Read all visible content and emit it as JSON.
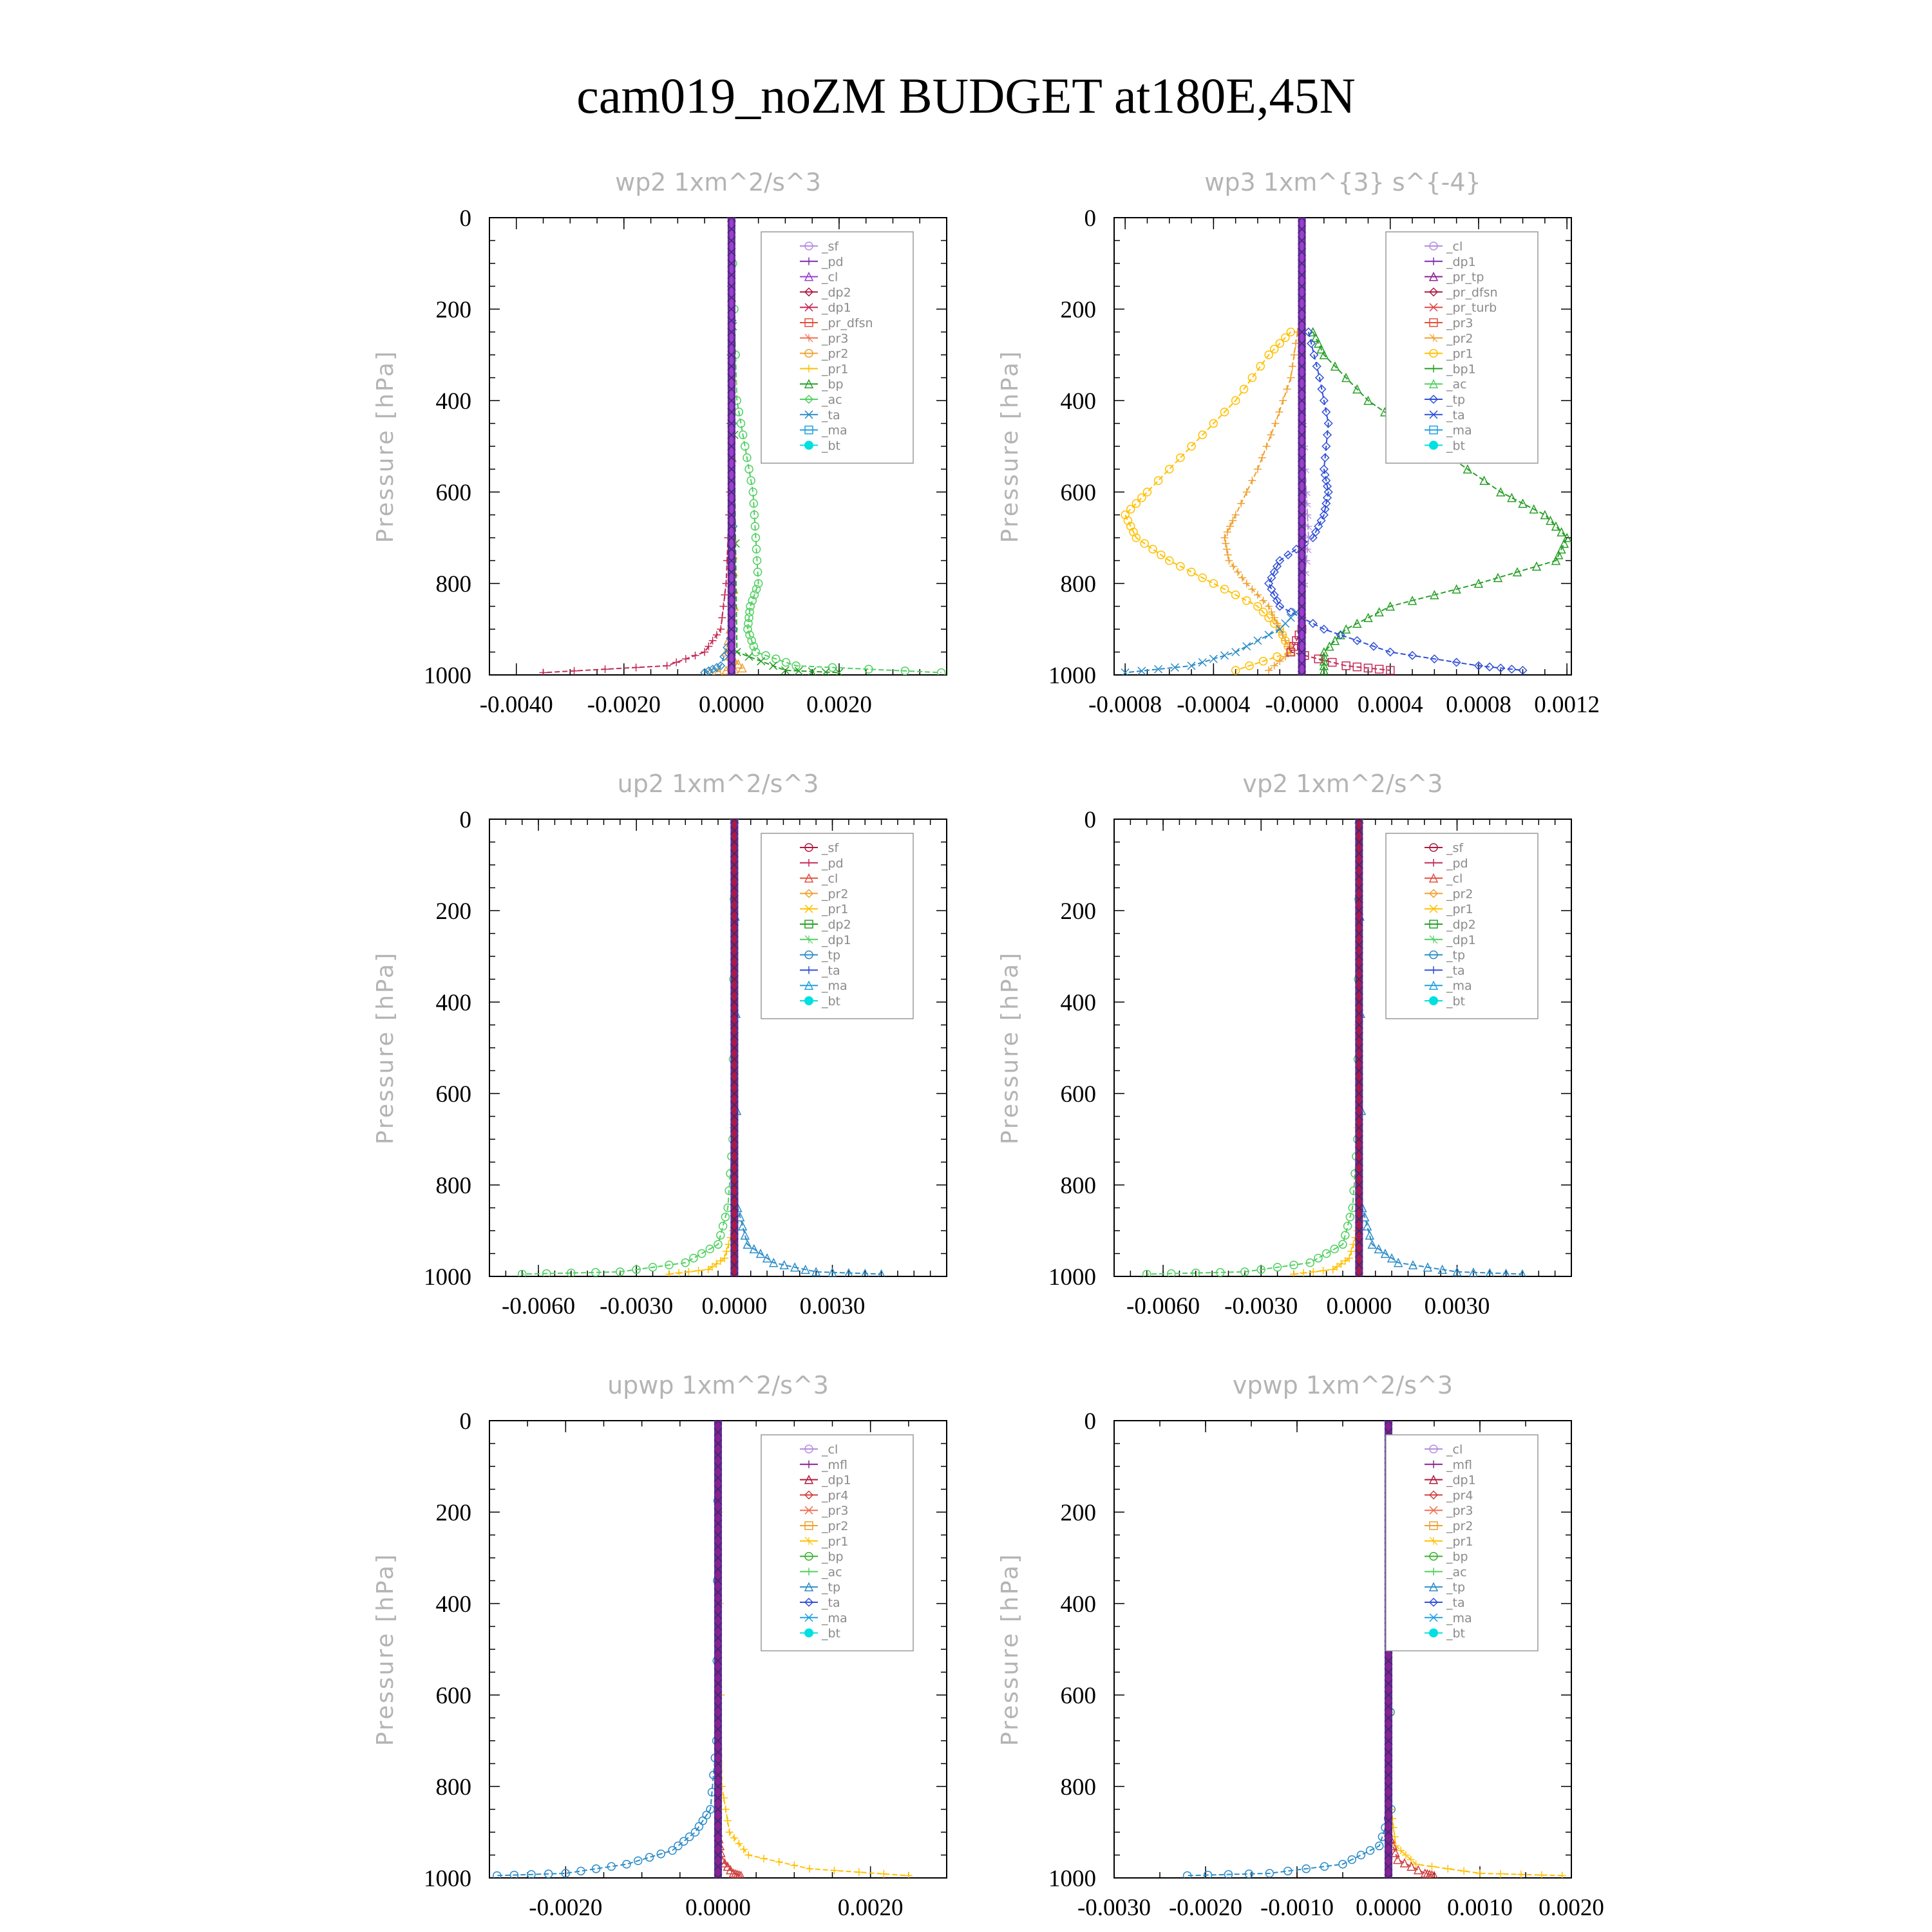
{
  "figure": {
    "title": "cam019_noZM  BUDGET at180E,45N"
  },
  "colors": {
    "sf": "#b48de0",
    "pd": "#7a2fb5",
    "cl": "#9b3fd0",
    "mfl": "#8a2090",
    "dp2": "#b01840",
    "dp1": "#c42a55",
    "dp1b": "#3cc850",
    "pr_dfsn": "#e0503c",
    "pr_tp": "#8a2090",
    "pr_turb": "#e04848",
    "pr4": "#d04040",
    "pr3": "#f07050",
    "pr2": "#f0a030",
    "pr1": "#ffc000",
    "bp": "#3db030",
    "bp1": "#28a028",
    "ac": "#50d060",
    "tp": "#2c8cc8",
    "ta": "#3050d8",
    "ma": "#20a0e0",
    "bt": "#00e0e0"
  },
  "chart_data": [
    {
      "type": "line",
      "title": "wp2   1xm^2/s^3",
      "ylabel": "Pressure [hPa]",
      "xlim": [
        -0.0045,
        0.004
      ],
      "ylim": [
        1000,
        0
      ],
      "xticks": [
        -0.004,
        -0.002,
        0.0,
        0.002
      ],
      "xtick_labels": [
        "-0.0040",
        "-0.0020",
        "0.0000",
        "0.0020"
      ],
      "yticks": [
        0,
        200,
        400,
        600,
        800,
        1000
      ],
      "ytick_labels": [
        "0",
        "200",
        "400",
        "600",
        "800",
        "1000"
      ],
      "x_minor": 0.0005,
      "legend": [
        "_sf",
        "_pd",
        "_cl",
        "_dp2",
        "_dp1",
        "_pr_dfsn",
        "_pr3",
        "_pr2",
        "_pr1",
        "_bp",
        "_ac",
        "_ta",
        "_ma",
        "_bt"
      ],
      "legend_colors": [
        "sf",
        "pd",
        "cl",
        "dp2",
        "dp1",
        "pr_dfsn",
        "pr3",
        "pr2",
        "pr1",
        "bp1",
        "ac",
        "tp",
        "ma",
        "bt"
      ],
      "series": [
        {
          "color": "ac",
          "y": [
            0,
            400,
            500,
            600,
            700,
            800,
            850,
            900,
            950,
            980,
            995
          ],
          "x": [
            0,
            0.0001,
            0.00025,
            0.0004,
            0.00045,
            0.0005,
            0.00035,
            0.0003,
            0.00045,
            0.0012,
            0.0039
          ]
        },
        {
          "color": "dp1",
          "y": [
            0,
            600,
            800,
            900,
            950,
            980,
            995
          ],
          "x": [
            0,
            -3e-05,
            -0.0001,
            -0.0002,
            -0.0005,
            -0.0012,
            -0.0035
          ]
        },
        {
          "color": "pr2",
          "y": [
            0,
            700,
            850,
            950,
            985,
            995
          ],
          "x": [
            0,
            2e-05,
            5e-05,
            -0.0001,
            0.0002,
            -0.0004
          ]
        },
        {
          "color": "tp",
          "y": [
            0,
            900,
            980,
            995
          ],
          "x": [
            0,
            4e-05,
            -0.0002,
            -0.0005
          ]
        },
        {
          "color": "bp1",
          "y": [
            0,
            950,
            990,
            995
          ],
          "x": [
            0,
            0.0001,
            0.001,
            0.002
          ]
        },
        {
          "color": "cl",
          "y": [
            0,
            1000
          ],
          "x": [
            0,
            0
          ],
          "thick": true
        }
      ]
    },
    {
      "type": "line",
      "title": "wp3   1xm^{3} s^{-4}",
      "ylabel": "Pressure [hPa]",
      "xlim": [
        -0.00085,
        0.00122
      ],
      "ylim": [
        1000,
        0
      ],
      "xticks": [
        -0.0008,
        -0.0004,
        0.0,
        0.0004,
        0.0008,
        0.0012
      ],
      "xtick_labels": [
        "-0.0008",
        "-0.0004",
        "-0.0000",
        "0.0004",
        "0.0008",
        "0.0012"
      ],
      "yticks": [
        0,
        200,
        400,
        600,
        800,
        1000
      ],
      "ytick_labels": [
        "0",
        "200",
        "400",
        "600",
        "800",
        "1000"
      ],
      "x_minor": 0.0001,
      "legend": [
        "_cl",
        "_dp1",
        "_pr_tp",
        "_pr_dfsn",
        "_pr_turb",
        "_pr3",
        "_pr2",
        "_pr1",
        "_bp1",
        "_ac",
        "_tp",
        "_ta",
        "_ma",
        "_bt"
      ],
      "legend_colors": [
        "sf",
        "pd",
        "pr_tp",
        "dp2",
        "pr_turb",
        "pr_dfsn",
        "pr2",
        "pr1",
        "bp1",
        "ac",
        "ta",
        "ta",
        "ma",
        "bt"
      ],
      "series": [
        {
          "color": "pr1",
          "y": [
            250,
            300,
            400,
            500,
            600,
            650,
            700,
            750,
            800,
            850,
            900,
            950,
            990
          ],
          "x": [
            -5e-05,
            -0.00015,
            -0.0003,
            -0.0005,
            -0.0007,
            -0.0008,
            -0.00075,
            -0.0006,
            -0.0004,
            -0.0002,
            -0.0001,
            -5e-05,
            -0.0003
          ]
        },
        {
          "color": "pr2",
          "y": [
            250,
            350,
            450,
            550,
            650,
            700,
            750,
            800,
            850,
            900,
            950,
            990
          ],
          "x": [
            -2e-05,
            -5e-05,
            -0.00012,
            -0.0002,
            -0.0003,
            -0.00035,
            -0.00033,
            -0.00025,
            -0.00015,
            -0.0001,
            -5e-05,
            -0.00015
          ]
        },
        {
          "color": "bp1",
          "y": [
            250,
            300,
            400,
            500,
            600,
            650,
            700,
            750,
            800,
            850,
            900,
            950,
            990
          ],
          "x": [
            5e-05,
            0.0001,
            0.0003,
            0.0006,
            0.0009,
            0.0011,
            0.0012,
            0.00115,
            0.0008,
            0.0004,
            0.0002,
            0.0001,
            0.0001
          ]
        },
        {
          "color": "ta",
          "y": [
            250,
            350,
            450,
            550,
            600,
            650,
            700,
            750,
            800,
            850,
            900,
            950,
            980,
            990
          ],
          "x": [
            3e-05,
            8e-05,
            0.00012,
            0.0001,
            0.00012,
            0.0001,
            5e-05,
            -0.0001,
            -0.00015,
            -0.0001,
            0.0001,
            0.0004,
            0.0008,
            0.001
          ]
        },
        {
          "color": "tp",
          "y": [
            850,
            900,
            950,
            980,
            995
          ],
          "x": [
            0,
            -0.0001,
            -0.0003,
            -0.0005,
            -0.0008
          ]
        },
        {
          "color": "dp1",
          "y": [
            900,
            950,
            980,
            990
          ],
          "x": [
            0,
            -5e-05,
            0.0002,
            0.0004
          ]
        },
        {
          "color": "sf",
          "y": [
            400,
            600,
            700,
            800
          ],
          "x": [
            0,
            2e-05,
            3e-05,
            1e-05
          ]
        },
        {
          "color": "cl",
          "y": [
            0,
            1000
          ],
          "x": [
            0,
            0
          ],
          "thick": true
        }
      ]
    },
    {
      "type": "line",
      "title": "up2   1xm^2/s^3",
      "ylabel": "Pressure [hPa]",
      "xlim": [
        -0.0075,
        0.0065
      ],
      "ylim": [
        1000,
        0
      ],
      "xticks": [
        -0.006,
        -0.003,
        0.0,
        0.003
      ],
      "xtick_labels": [
        "-0.0060",
        "-0.0030",
        "0.0000",
        "0.0030"
      ],
      "yticks": [
        0,
        200,
        400,
        600,
        800,
        1000
      ],
      "ytick_labels": [
        "0",
        "200",
        "400",
        "600",
        "800",
        "1000"
      ],
      "x_minor": 0.0005,
      "legend": [
        "_sf",
        "_pd",
        "_cl",
        "_pr2",
        "_pr1",
        "_dp2",
        "_dp1",
        "_tp",
        "_ta",
        "_ma",
        "_bt"
      ],
      "legend_colors": [
        "dp2",
        "dp1",
        "pr_dfsn",
        "pr2",
        "pr1",
        "bp1",
        "ac",
        "tp",
        "ta",
        "ma",
        "bt"
      ],
      "series": [
        {
          "color": "ac",
          "y": [
            0,
            700,
            850,
            930,
            970,
            990,
            995
          ],
          "x": [
            0,
            -5e-05,
            -0.0002,
            -0.0005,
            -0.0015,
            -0.0035,
            -0.0065
          ]
        },
        {
          "color": "pr1",
          "y": [
            0,
            900,
            960,
            985,
            995
          ],
          "x": [
            0,
            -5e-05,
            -0.0003,
            -0.0008,
            -0.002
          ]
        },
        {
          "color": "tp",
          "y": [
            0,
            850,
            930,
            970,
            990,
            995
          ],
          "x": [
            0,
            0.0001,
            0.0004,
            0.0012,
            0.0025,
            0.0045
          ]
        },
        {
          "color": "dp2",
          "y": [
            0,
            1000
          ],
          "x": [
            0,
            0
          ],
          "thick": true
        }
      ]
    },
    {
      "type": "line",
      "title": "vp2   1xm^2/s^3",
      "ylabel": "Pressure [hPa]",
      "xlim": [
        -0.0075,
        0.0065
      ],
      "ylim": [
        1000,
        0
      ],
      "xticks": [
        -0.006,
        -0.003,
        0.0,
        0.003
      ],
      "xtick_labels": [
        "-0.0060",
        "-0.0030",
        "0.0000",
        "0.0030"
      ],
      "yticks": [
        0,
        200,
        400,
        600,
        800,
        1000
      ],
      "ytick_labels": [
        "0",
        "200",
        "400",
        "600",
        "800",
        "1000"
      ],
      "x_minor": 0.0005,
      "legend": [
        "_sf",
        "_pd",
        "_cl",
        "_pr2",
        "_pr1",
        "_dp2",
        "_dp1",
        "_tp",
        "_ta",
        "_ma",
        "_bt"
      ],
      "legend_colors": [
        "dp2",
        "dp1",
        "pr_dfsn",
        "pr2",
        "pr1",
        "bp1",
        "ac",
        "tp",
        "ta",
        "ma",
        "bt"
      ],
      "series": [
        {
          "color": "ac",
          "y": [
            0,
            700,
            850,
            930,
            970,
            990,
            995
          ],
          "x": [
            0,
            -5e-05,
            -0.0002,
            -0.0005,
            -0.0015,
            -0.0035,
            -0.0065
          ]
        },
        {
          "color": "pr1",
          "y": [
            0,
            900,
            960,
            985,
            995
          ],
          "x": [
            0,
            -5e-05,
            -0.0003,
            -0.0008,
            -0.002
          ]
        },
        {
          "color": "tp",
          "y": [
            0,
            850,
            930,
            970,
            990,
            995
          ],
          "x": [
            0,
            0.0001,
            0.0004,
            0.0012,
            0.003,
            0.005
          ]
        },
        {
          "color": "dp2",
          "y": [
            0,
            1000
          ],
          "x": [
            0,
            0
          ],
          "thick": true
        }
      ]
    },
    {
      "type": "line",
      "title": "upwp   1xm^2/s^3",
      "ylabel": "Pressure [hPa]",
      "xlim": [
        -0.003,
        0.003
      ],
      "ylim": [
        1000,
        0
      ],
      "xticks": [
        -0.002,
        0.0,
        0.002
      ],
      "xtick_labels": [
        "-0.0020",
        "0.0000",
        "0.0020"
      ],
      "yticks": [
        0,
        200,
        400,
        600,
        800,
        1000
      ],
      "ytick_labels": [
        "0",
        "200",
        "400",
        "600",
        "800",
        "1000"
      ],
      "x_minor": 0.0005,
      "legend": [
        "_cl",
        "_mfl",
        "_dp1",
        "_pr4",
        "_pr3",
        "_pr2",
        "_pr1",
        "_bp",
        "_ac",
        "_tp",
        "_ta",
        "_ma",
        "_bt"
      ],
      "legend_colors": [
        "sf",
        "mfl",
        "dp2",
        "pr4",
        "pr3",
        "pr2",
        "pr1",
        "bp",
        "ac",
        "tp",
        "ta",
        "ma",
        "bt"
      ],
      "series": [
        {
          "color": "tp",
          "y": [
            0,
            700,
            850,
            900,
            940,
            970,
            990,
            995
          ],
          "x": [
            0,
            -2e-05,
            -0.0001,
            -0.0003,
            -0.0006,
            -0.0012,
            -0.002,
            -0.0029
          ]
        },
        {
          "color": "pr1",
          "y": [
            0,
            800,
            900,
            950,
            980,
            995
          ],
          "x": [
            0,
            5e-05,
            0.00015,
            0.0004,
            0.0012,
            0.0025
          ]
        },
        {
          "color": "pr4",
          "y": [
            900,
            960,
            990,
            995
          ],
          "x": [
            0,
            5e-05,
            0.0002,
            0.0003
          ]
        },
        {
          "color": "mfl",
          "y": [
            0,
            1000
          ],
          "x": [
            0,
            0
          ],
          "thick": true
        }
      ]
    },
    {
      "type": "line",
      "title": "vpwp   1xm^2/s^3",
      "ylabel": "Pressure [hPa]",
      "xlim": [
        -0.003,
        0.002
      ],
      "ylim": [
        1000,
        0
      ],
      "xticks": [
        -0.003,
        -0.002,
        -0.001,
        0.0,
        0.001,
        0.002
      ],
      "xtick_labels": [
        "-0.0030",
        "-0.0020",
        "-0.0010",
        "0.0000",
        "0.0010",
        "0.0020"
      ],
      "yticks": [
        0,
        200,
        400,
        600,
        800,
        1000
      ],
      "ytick_labels": [
        "0",
        "200",
        "400",
        "600",
        "800",
        "1000"
      ],
      "x_minor": 0.0005,
      "legend": [
        "_cl",
        "_mfl",
        "_dp1",
        "_pr4",
        "_pr3",
        "_pr2",
        "_pr1",
        "_bp",
        "_ac",
        "_tp",
        "_ta",
        "_ma",
        "_bt"
      ],
      "legend_colors": [
        "sf",
        "mfl",
        "dp2",
        "pr4",
        "pr3",
        "pr2",
        "pr1",
        "bp",
        "ac",
        "tp",
        "ta",
        "ma",
        "bt"
      ],
      "series": [
        {
          "color": "tp",
          "y": [
            0,
            850,
            930,
            970,
            990,
            995
          ],
          "x": [
            0,
            3e-05,
            -0.0001,
            -0.0005,
            -0.0013,
            -0.0022
          ]
        },
        {
          "color": "pr1",
          "y": [
            0,
            850,
            930,
            970,
            990,
            995
          ],
          "x": [
            0,
            3e-05,
            8e-05,
            0.0003,
            0.001,
            0.0019
          ]
        },
        {
          "color": "pr4",
          "y": [
            900,
            960,
            990,
            995
          ],
          "x": [
            0,
            0.0001,
            0.0004,
            0.0005
          ]
        },
        {
          "color": "mfl",
          "y": [
            0,
            1000
          ],
          "x": [
            0,
            0
          ],
          "thick": true
        }
      ]
    }
  ]
}
